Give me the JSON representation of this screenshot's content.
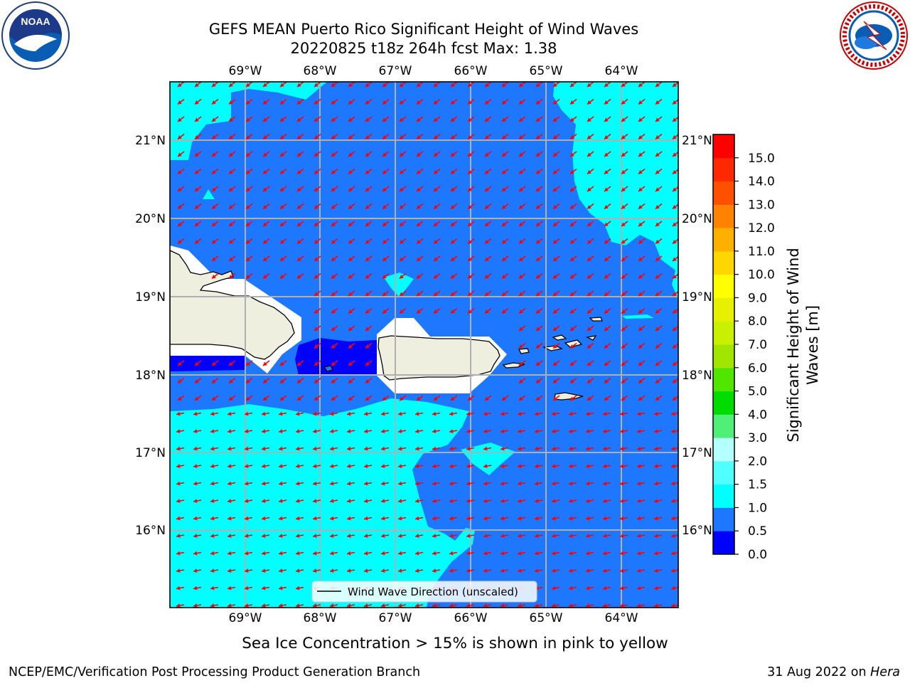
{
  "title": {
    "line1": "GEFS MEAN Puerto Rico Significant Height of Wind Waves",
    "line2": "20220825 t18z 264h fcst   Max: 1.38"
  },
  "logos": {
    "noaa_text": "NOAA",
    "noaa_ring": "NATIONAL OCEANIC AND ATMOSPHERIC ADMINISTRATION · U.S. DEPARTMENT OF COMMERCE",
    "nws_ring": "NATIONAL WEATHER SERVICE"
  },
  "map": {
    "lon_ticks": [
      "69°W",
      "68°W",
      "67°W",
      "66°W",
      "65°W",
      "64°W"
    ],
    "lat_ticks": [
      "21°N",
      "20°N",
      "19°N",
      "18°N",
      "17°N",
      "16°N"
    ],
    "legend_label": "Wind Wave Direction (unscaled)",
    "arrow_color": "#ff0000",
    "land_color": "#efefdf",
    "ice_color": "#ffffff"
  },
  "colorbar": {
    "label_line1": "Significant Height of Wind",
    "label_line2": "Waves [m]",
    "ticks": [
      "0.0",
      "0.5",
      "1.0",
      "1.5",
      "2.0",
      "3.0",
      "4.0",
      "5.0",
      "6.0",
      "7.0",
      "8.0",
      "9.0",
      "10.0",
      "11.0",
      "12.0",
      "13.0",
      "14.0",
      "15.0"
    ],
    "colors": [
      "#0000ff",
      "#1e78ff",
      "#00ffff",
      "#50ffff",
      "#b4ffff",
      "#50f078",
      "#00dc00",
      "#50e600",
      "#a0e600",
      "#c8f000",
      "#e6f000",
      "#ffff00",
      "#ffd700",
      "#ffaf00",
      "#ff8200",
      "#ff5000",
      "#ff2800",
      "#ff0000"
    ]
  },
  "subcaption": "Sea Ice Concentration > 15% is shown in pink to yellow",
  "footer": {
    "left": "NCEP/EMC/Verification Post Processing Product Generation Branch",
    "right_prefix": "31 Aug 2022 on ",
    "right_italic": "Hera"
  }
}
